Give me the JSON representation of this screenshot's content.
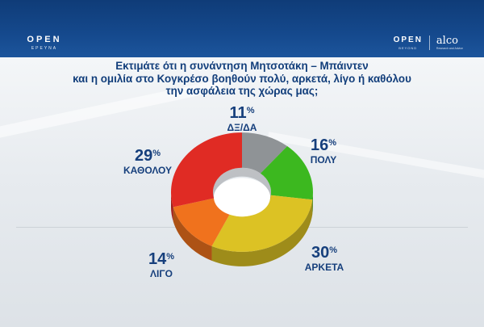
{
  "header": {
    "logo_left": {
      "main": "OPEN",
      "sub": "ΕΡΕΥΝΑ"
    },
    "logo_right": {
      "open_main": "OPEN",
      "open_sub": "BEYOND",
      "alco_main": "alco",
      "alco_sub": "Research and Advice"
    }
  },
  "question": {
    "lines": [
      "Εκτιμάτε ότι η συνάντηση Μητσοτάκη – Μπάιντεν",
      "και η ομιλία στο Κογκρέσο βοηθούν πολύ, αρκετά, λίγο ή καθόλου",
      "την ασφάλεια της χώρας μας;"
    ]
  },
  "chart_data": {
    "type": "pie",
    "categories": [
      "ΔΞ/ΔΑ",
      "ΠΟΛΥ",
      "ΑΡΚΕΤΑ",
      "ΛΙΓΟ",
      "ΚΑΘΟΛΟΥ"
    ],
    "values": [
      11,
      16,
      30,
      14,
      29
    ],
    "unit": "%",
    "colors": [
      "#8f9396",
      "#3cb81f",
      "#dcc224",
      "#f0721d",
      "#e02b24"
    ],
    "donut": true
  },
  "labels": [
    {
      "value": "11",
      "sign": "%",
      "category": "ΔΞ/ΔΑ"
    },
    {
      "value": "16",
      "sign": "%",
      "category": "ΠΟΛΥ"
    },
    {
      "value": "30",
      "sign": "%",
      "category": "ΑΡΚΕΤΑ"
    },
    {
      "value": "14",
      "sign": "%",
      "category": "ΛΙΓΟ"
    },
    {
      "value": "29",
      "sign": "%",
      "category": "ΚΑΘΟΛΟΥ"
    }
  ]
}
